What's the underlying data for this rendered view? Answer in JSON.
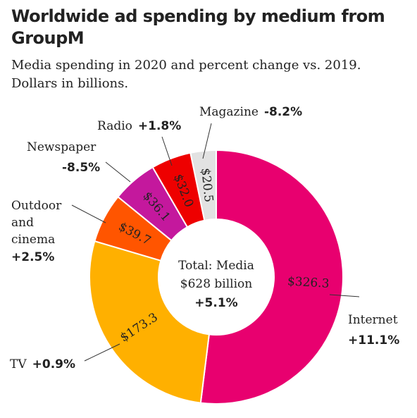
{
  "chart_data": {
    "type": "pie",
    "title": "Worldwide ad spending by medium from GroupM",
    "subtitle_line1": "Media spending in 2020 and percent change vs. 2019.",
    "subtitle_line2": "Dollars in billions.",
    "center": {
      "line1": "Total: Media",
      "line2": "$628 billion",
      "line3": "+5.1%"
    },
    "slices": [
      {
        "name": "Internet",
        "value": 326.3,
        "value_label": "$326.3",
        "change": "+11.1%",
        "color": "#e8006f"
      },
      {
        "name": "TV",
        "value": 173.3,
        "value_label": "$173.3",
        "change": "+0.9%",
        "color": "#ffb000"
      },
      {
        "name": "Outdoor and cinema",
        "value": 39.7,
        "value_label": "$39.7",
        "change": "+2.5%",
        "color": "#ff5500"
      },
      {
        "name": "Newspaper",
        "value": 36.1,
        "value_label": "$36.1",
        "change": "-8.5%",
        "color": "#c4189d"
      },
      {
        "name": "Radio",
        "value": 32.0,
        "value_label": "$32.0",
        "change": "+1.8%",
        "color": "#ee0000"
      },
      {
        "name": "Magazine",
        "value": 20.5,
        "value_label": "$20.5",
        "change": "-8.2%",
        "color": "#e2e2e2"
      }
    ],
    "label_lines": {
      "outdoor": [
        "Outdoor",
        "and",
        "cinema"
      ]
    }
  }
}
